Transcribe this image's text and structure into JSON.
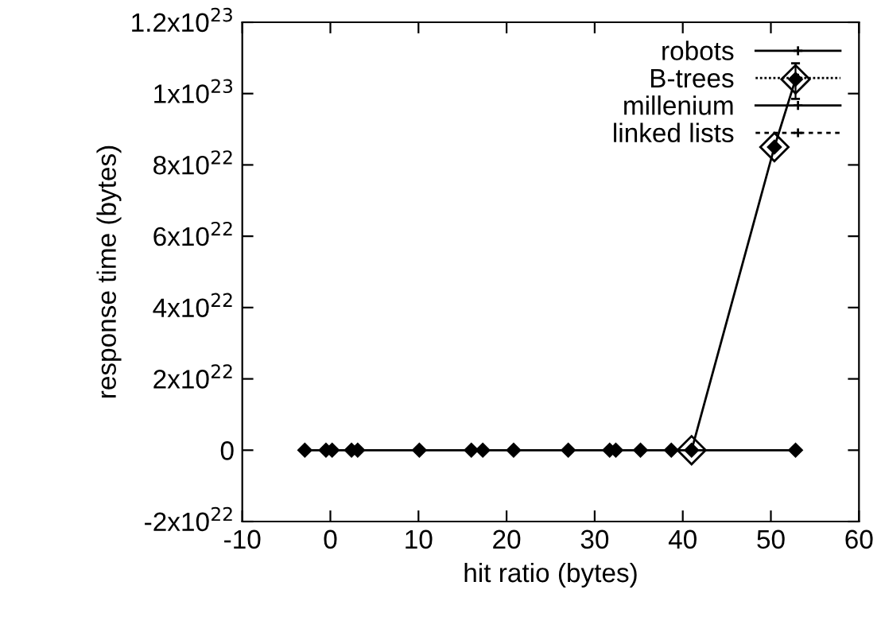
{
  "chart_data": {
    "type": "line",
    "xlabel": "hit ratio (bytes)",
    "ylabel": "response time (bytes)",
    "xlim": [
      -10,
      60
    ],
    "xticks": [
      -10,
      0,
      10,
      20,
      30,
      40,
      50,
      60
    ],
    "ylim": [
      -2e+22,
      1.2e+23
    ],
    "yticks": [
      {
        "value": -2e+22,
        "label": "-2x10$^{22}$"
      },
      0,
      {
        "value": 2e+22,
        "label": "2x10$^{22}$"
      },
      {
        "value": 4e+22,
        "label": "4x10$^{22}$"
      },
      {
        "value": 6e+22,
        "label": "6x10$^{22}$"
      },
      {
        "value": 8e+22,
        "label": "8x10$^{22}$"
      },
      {
        "value": 1e+23,
        "label": "1x10$^{23}$"
      },
      {
        "value": 1.2e+23,
        "label": "1.2x10$^{23}$"
      }
    ],
    "grid": false,
    "legend": "top right",
    "marker": "diamond",
    "series": [
      {
        "name": "robots",
        "color": "#000000",
        "line_style": "solid",
        "x": [
          -2.9,
          -0.5,
          0.2,
          2.4,
          3.1,
          10.1,
          16.0,
          17.3,
          20.8,
          27.0,
          31.7,
          32.4,
          35.2,
          38.7,
          41.0,
          52.8
        ],
        "values": [
          0,
          0,
          0,
          0,
          0,
          0,
          0,
          0,
          0,
          0,
          0,
          0,
          0,
          0,
          0,
          0
        ]
      },
      {
        "name": "B-trees",
        "color": "#000000",
        "line_style": "dotted",
        "x": [
          52.8
        ],
        "values": [
          1.04e+23
        ],
        "errors": [
          [
            9.85e+22,
            1.085e+23
          ]
        ]
      },
      {
        "name": "millenium",
        "color": "#000000",
        "line_style": "solid",
        "x": [
          41.0,
          50.4,
          52.8
        ],
        "values": [
          0,
          8.5e+22,
          1.04e+23
        ]
      },
      {
        "name": "linked lists",
        "color": "#000000",
        "line_style": "dashed",
        "x": [
          50.4
        ],
        "values": [
          8.5e+22
        ]
      }
    ]
  }
}
